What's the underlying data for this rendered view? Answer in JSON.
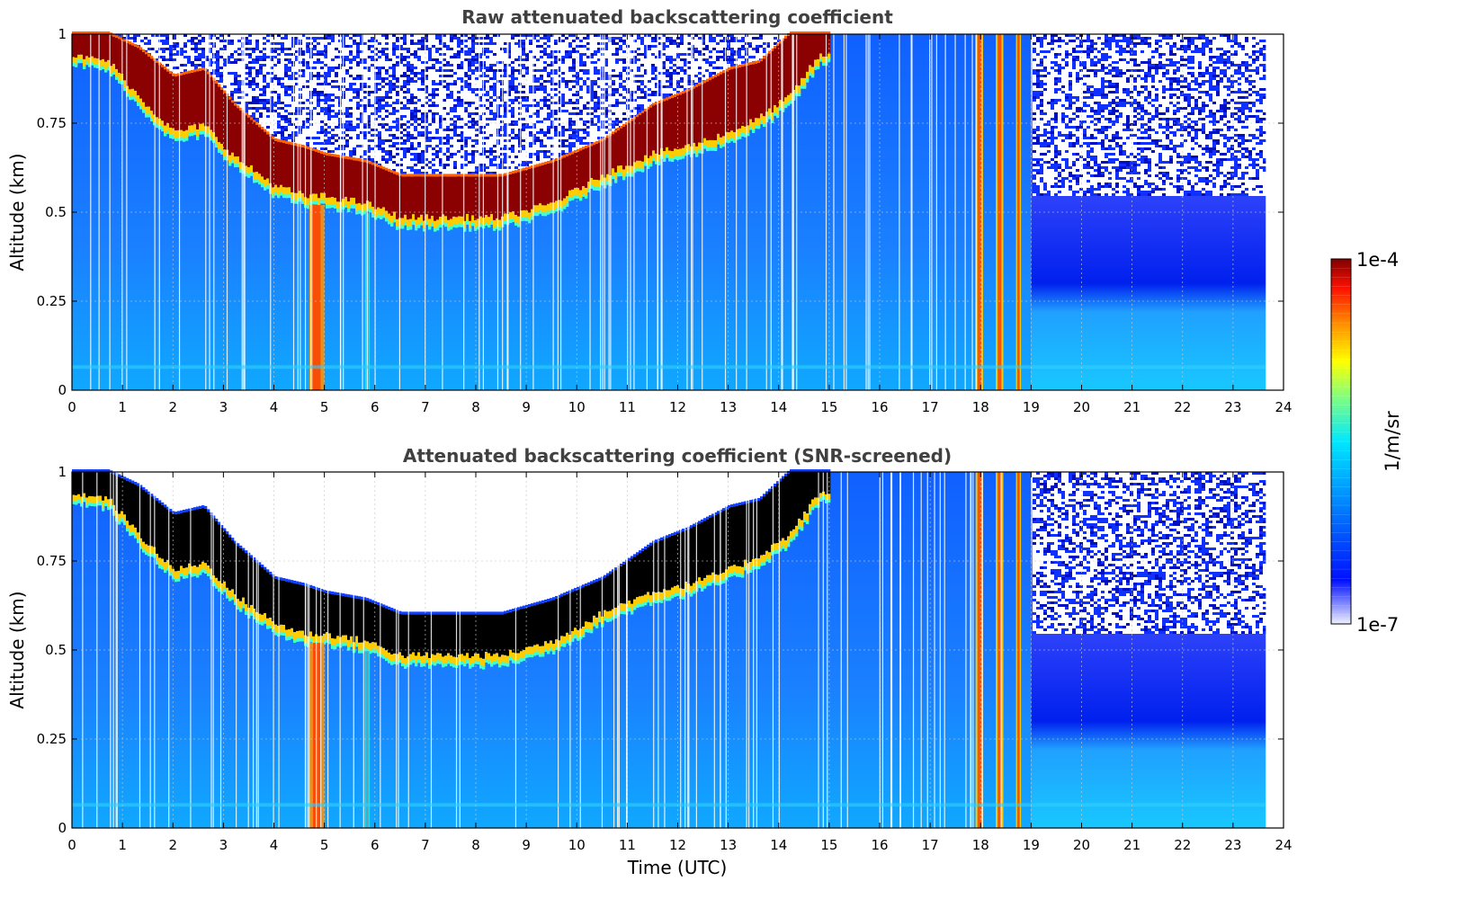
{
  "chart_data": [
    {
      "type": "heatmap",
      "id": "raw",
      "title": "Raw attenuated backscattering coefficient",
      "xlabel": "",
      "ylabel": "Altitude (km)",
      "xlim": [
        0,
        24
      ],
      "ylim": [
        0,
        1
      ],
      "xticks": [
        "0",
        "1",
        "2",
        "3",
        "4",
        "5",
        "6",
        "7",
        "8",
        "9",
        "10",
        "11",
        "12",
        "13",
        "14",
        "15",
        "16",
        "17",
        "18",
        "19",
        "20",
        "21",
        "22",
        "23",
        "24"
      ],
      "yticks": [
        "0",
        "0.25",
        "0.5",
        "0.75",
        "1"
      ],
      "data_end_time": 23.65,
      "cloud_layer": {
        "time": [
          0.0,
          0.7,
          1.3,
          2.0,
          2.6,
          3.2,
          4.0,
          4.6,
          5.0,
          5.8,
          6.5,
          7.5,
          8.5,
          9.5,
          10.5,
          11.5,
          12.2,
          13.0,
          13.6,
          14.2,
          14.8
        ],
        "base_km": [
          0.92,
          0.9,
          0.8,
          0.7,
          0.72,
          0.63,
          0.55,
          0.52,
          0.52,
          0.5,
          0.46,
          0.46,
          0.46,
          0.5,
          0.58,
          0.64,
          0.66,
          0.7,
          0.74,
          0.8,
          0.92
        ],
        "top_km": [
          1.0,
          1.0,
          0.96,
          0.88,
          0.9,
          0.8,
          0.7,
          0.68,
          0.66,
          0.64,
          0.6,
          0.6,
          0.6,
          0.64,
          0.7,
          0.8,
          0.84,
          0.9,
          0.92,
          1.0,
          1.0
        ]
      },
      "precip_shafts": [
        {
          "start": 4.7,
          "end": 5.0
        },
        {
          "start": 5.8,
          "end": 5.9
        },
        {
          "start": 17.9,
          "end": 18.05
        },
        {
          "start": 18.3,
          "end": 18.45
        },
        {
          "start": 18.7,
          "end": 18.8
        }
      ]
    },
    {
      "type": "heatmap",
      "id": "screened",
      "title": "Attenuated backscattering coefficient (SNR-screened)",
      "xlabel": "Time (UTC)",
      "ylabel": "Altitude (km)",
      "xlim": [
        0,
        24
      ],
      "ylim": [
        0,
        1
      ],
      "xticks": [
        "0",
        "1",
        "2",
        "3",
        "4",
        "5",
        "6",
        "7",
        "8",
        "9",
        "10",
        "11",
        "12",
        "13",
        "14",
        "15",
        "16",
        "17",
        "18",
        "19",
        "20",
        "21",
        "22",
        "23",
        "24"
      ],
      "yticks": [
        "0",
        "0.25",
        "0.5",
        "0.75",
        "1"
      ],
      "data_end_time": 23.65,
      "cloud_layer": {
        "time": [
          0.0,
          0.7,
          1.3,
          2.0,
          2.6,
          3.2,
          4.0,
          4.6,
          5.0,
          5.8,
          6.5,
          7.5,
          8.5,
          9.5,
          10.5,
          11.5,
          12.2,
          13.0,
          13.6,
          14.2,
          14.8
        ],
        "base_km": [
          0.92,
          0.9,
          0.8,
          0.7,
          0.72,
          0.63,
          0.55,
          0.52,
          0.52,
          0.5,
          0.46,
          0.46,
          0.46,
          0.5,
          0.58,
          0.64,
          0.66,
          0.7,
          0.74,
          0.8,
          0.92
        ],
        "top_km": [
          1.0,
          1.0,
          0.96,
          0.88,
          0.9,
          0.8,
          0.7,
          0.68,
          0.66,
          0.64,
          0.6,
          0.6,
          0.6,
          0.64,
          0.7,
          0.8,
          0.84,
          0.9,
          0.92,
          1.0,
          1.0
        ]
      },
      "screened_above_cloud": true
    }
  ],
  "colorbar": {
    "max_label": "1e-4",
    "min_label": "1e-7",
    "unit_label": "1/m/sr",
    "colormap": "jet",
    "colors": [
      "#e8e8f8",
      "#0000ff",
      "#00aaff",
      "#00ffff",
      "#aaff55",
      "#ffff00",
      "#ff8800",
      "#ff0000",
      "#800000"
    ]
  }
}
